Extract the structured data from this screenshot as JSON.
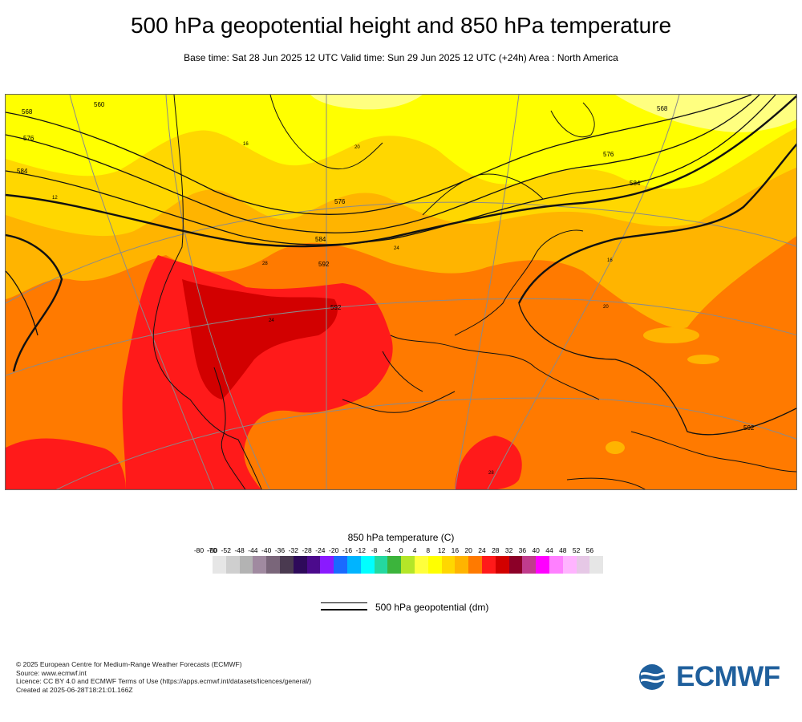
{
  "header": {
    "title": "500 hPa geopotential height and 850 hPa temperature",
    "subtitle": "Base time: Sat 28 Jun 2025 12 UTC Valid time: Sun 29 Jun 2025 12 UTC (+24h) Area : North America"
  },
  "map": {
    "contour_labels": [
      "560",
      "568",
      "576",
      "584",
      "592",
      "568",
      "576",
      "584",
      "592",
      "576",
      "584",
      "592"
    ],
    "temp_labels": [
      "12",
      "16",
      "20",
      "24",
      "28",
      "16",
      "20",
      "24",
      "28"
    ]
  },
  "legend": {
    "title": "850 hPa temperature (C)",
    "ticks": [
      "-80",
      "-70",
      "-60",
      "-52",
      "-48",
      "-44",
      "-40",
      "-36",
      "-32",
      "-28",
      "-24",
      "-20",
      "-16",
      "-12",
      "-8",
      "-4",
      "0",
      "4",
      "8",
      "12",
      "16",
      "20",
      "24",
      "28",
      "32",
      "36",
      "40",
      "44",
      "48",
      "52",
      "56"
    ],
    "colors": [
      "#e6e6e6",
      "#cfcfcf",
      "#b3b3b3",
      "#a08aa0",
      "#7a667a",
      "#4a3a50",
      "#2e0a5a",
      "#4b0a8c",
      "#8a1aff",
      "#1a6aff",
      "#00b4ff",
      "#00ffff",
      "#24d8a0",
      "#3cb43c",
      "#b4e628",
      "#ffff3c",
      "#ffff00",
      "#ffd700",
      "#ffb400",
      "#ff7a00",
      "#ff1a1a",
      "#d20000",
      "#8c0028",
      "#c03c8c",
      "#ff00ff",
      "#ff80ff",
      "#ffb4ff",
      "#e6c8e6",
      "#e6e6e6"
    ],
    "geopotential_label": "500 hPa geopotential (dm)"
  },
  "footer": {
    "line1": "© 2025 European Centre for Medium-Range Weather Forecasts (ECMWF)",
    "line2": "Source: www.ecmwf.int",
    "line3": "Licence: CC BY 4.0 and ECMWF Terms of Use (https://apps.ecmwf.int/datasets/licences/general/)",
    "line4": "Created at 2025-06-28T18:21:01.166Z"
  },
  "logo": {
    "text": "ECMWF",
    "color": "#1f5f9c"
  }
}
